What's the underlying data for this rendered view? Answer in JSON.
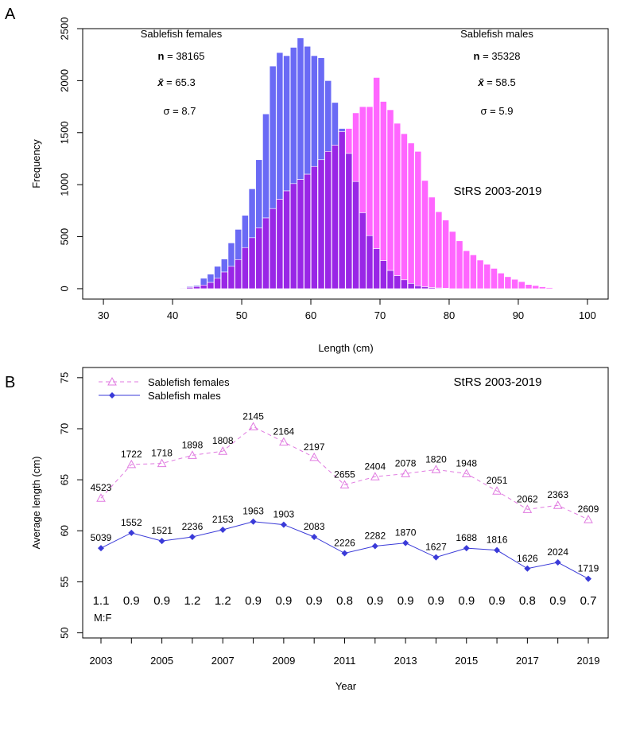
{
  "colors": {
    "female": "#ff66ff",
    "male": "#6a6af5",
    "overlap": "#9926e6",
    "female_line": "#e07ae0",
    "male_line": "#3a3ad8"
  },
  "chart_data": [
    {
      "type": "bar",
      "panel_label": "A",
      "xlabel": "Length (cm)",
      "ylabel": "Frequency",
      "xlim": [
        27,
        103
      ],
      "ylim": [
        -100,
        2500
      ],
      "xticks": [
        30,
        40,
        50,
        60,
        70,
        80,
        90,
        100
      ],
      "yticks": [
        0,
        500,
        1000,
        1500,
        2000,
        2500
      ],
      "bin_width": 1,
      "annotation": "StRS 2003-2019",
      "female_stats": {
        "label": "Sablefish females",
        "n_label": "n",
        "n": "38165",
        "mean_label": "x̄",
        "mean": "65.3",
        "sd_label": "σ",
        "sd": "8.7"
      },
      "male_stats": {
        "label": "Sablefish males",
        "n_label": "n",
        "n": "35328",
        "mean_label": "x̄",
        "mean": "58.5",
        "sd_label": "σ",
        "sd": "5.9"
      },
      "series": [
        {
          "sex": "female",
          "bins_start": 41,
          "values": [
            5,
            12,
            20,
            35,
            60,
            100,
            160,
            215,
            280,
            395,
            490,
            585,
            680,
            770,
            860,
            940,
            1010,
            1050,
            1100,
            1175,
            1240,
            1320,
            1380,
            1510,
            1540,
            1690,
            1750,
            1750,
            2030,
            1800,
            1720,
            1590,
            1490,
            1400,
            1320,
            1040,
            880,
            740,
            660,
            550,
            460,
            365,
            325,
            275,
            235,
            195,
            150,
            115,
            90,
            68,
            40,
            30,
            18,
            10
          ]
        },
        {
          "sex": "male",
          "bins_start": 41,
          "values": [
            5,
            20,
            30,
            100,
            140,
            215,
            285,
            440,
            570,
            705,
            960,
            1240,
            1680,
            2140,
            2270,
            2240,
            2320,
            2410,
            2330,
            2240,
            2220,
            2000,
            1790,
            1540,
            1300,
            1030,
            730,
            510,
            385,
            270,
            175,
            125,
            85,
            50,
            28,
            18,
            10,
            6,
            3
          ]
        }
      ]
    },
    {
      "type": "line",
      "panel_label": "B",
      "xlabel": "Year",
      "ylabel": "Average length (cm)",
      "xlim": [
        2003,
        2019
      ],
      "ylim": [
        49.5,
        76
      ],
      "xticks": [
        2003,
        2005,
        2007,
        2009,
        2011,
        2013,
        2015,
        2017,
        2019
      ],
      "yticks": [
        50,
        55,
        60,
        65,
        70,
        75
      ],
      "annotation": "StRS 2003-2019",
      "ratio_label": "M:F",
      "ratios": [
        "1.1",
        "0.9",
        "0.9",
        "1.2",
        "1.2",
        "0.9",
        "0.9",
        "0.9",
        "0.8",
        "0.9",
        "0.9",
        "0.9",
        "0.9",
        "0.9",
        "0.8",
        "0.9",
        "0.7"
      ],
      "x": [
        2003,
        2004,
        2005,
        2006,
        2007,
        2008,
        2009,
        2010,
        2011,
        2012,
        2013,
        2014,
        2015,
        2016,
        2017,
        2018,
        2019
      ],
      "series": [
        {
          "name": "Sablefish females",
          "sex": "female",
          "marker": "triangle",
          "values": [
            63.2,
            66.5,
            66.6,
            67.4,
            67.8,
            70.2,
            68.7,
            67.2,
            64.5,
            65.3,
            65.6,
            66.0,
            65.6,
            63.9,
            62.1,
            62.5,
            61.1
          ],
          "labels": [
            "4523",
            "1722",
            "1718",
            "1898",
            "1808",
            "2145",
            "2164",
            "2197",
            "2655",
            "2404",
            "2078",
            "1820",
            "1948",
            "2051",
            "2062",
            "2363",
            "2609"
          ]
        },
        {
          "name": "Sablefish males",
          "sex": "male",
          "marker": "diamond",
          "values": [
            58.3,
            59.8,
            59.0,
            59.4,
            60.1,
            60.9,
            60.6,
            59.4,
            57.8,
            58.5,
            58.8,
            57.4,
            58.3,
            58.1,
            56.3,
            56.9,
            55.3
          ],
          "labels": [
            "5039",
            "1552",
            "1521",
            "2236",
            "2153",
            "1963",
            "1903",
            "2083",
            "2226",
            "2282",
            "1870",
            "1627",
            "1688",
            "1816",
            "1626",
            "2024",
            "1719"
          ]
        }
      ]
    }
  ]
}
